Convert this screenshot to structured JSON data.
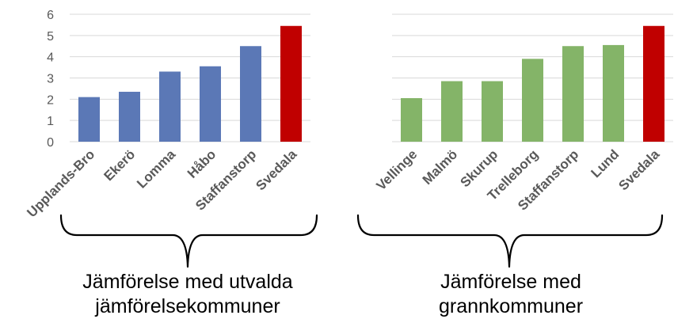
{
  "chart_data": {
    "type": "bar",
    "ylim": [
      0,
      6
    ],
    "yticks": [
      0,
      1,
      2,
      3,
      4,
      5,
      6
    ],
    "grid": true,
    "colors": {
      "blue": "#5b78b6",
      "green": "#84b468",
      "red": "#c00000",
      "grid": "#d9d9d9",
      "tick": "#595959"
    },
    "groups": [
      {
        "caption": [
          "Jämförelse med utvalda",
          "jämförelsekommuner"
        ],
        "bars": [
          {
            "category": "Upplands-Bro",
            "value": 2.1,
            "color": "#5b78b6"
          },
          {
            "category": "Ekerö",
            "value": 2.35,
            "color": "#5b78b6"
          },
          {
            "category": "Lomma",
            "value": 3.3,
            "color": "#5b78b6"
          },
          {
            "category": "Håbo",
            "value": 3.55,
            "color": "#5b78b6"
          },
          {
            "category": "Staffanstorp",
            "value": 4.5,
            "color": "#5b78b6"
          },
          {
            "category": "Svedala",
            "value": 5.45,
            "color": "#c00000"
          }
        ]
      },
      {
        "caption": [
          "Jämförelse med",
          "grannkommuner"
        ],
        "bars": [
          {
            "category": "Vellinge",
            "value": 2.05,
            "color": "#84b468"
          },
          {
            "category": "Malmö",
            "value": 2.85,
            "color": "#84b468"
          },
          {
            "category": "Skurup",
            "value": 2.85,
            "color": "#84b468"
          },
          {
            "category": "Trelleborg",
            "value": 3.9,
            "color": "#84b468"
          },
          {
            "category": "Staffanstorp",
            "value": 4.5,
            "color": "#84b468"
          },
          {
            "category": "Lund",
            "value": 4.55,
            "color": "#84b468"
          },
          {
            "category": "Svedala",
            "value": 5.45,
            "color": "#c00000"
          }
        ]
      }
    ]
  }
}
